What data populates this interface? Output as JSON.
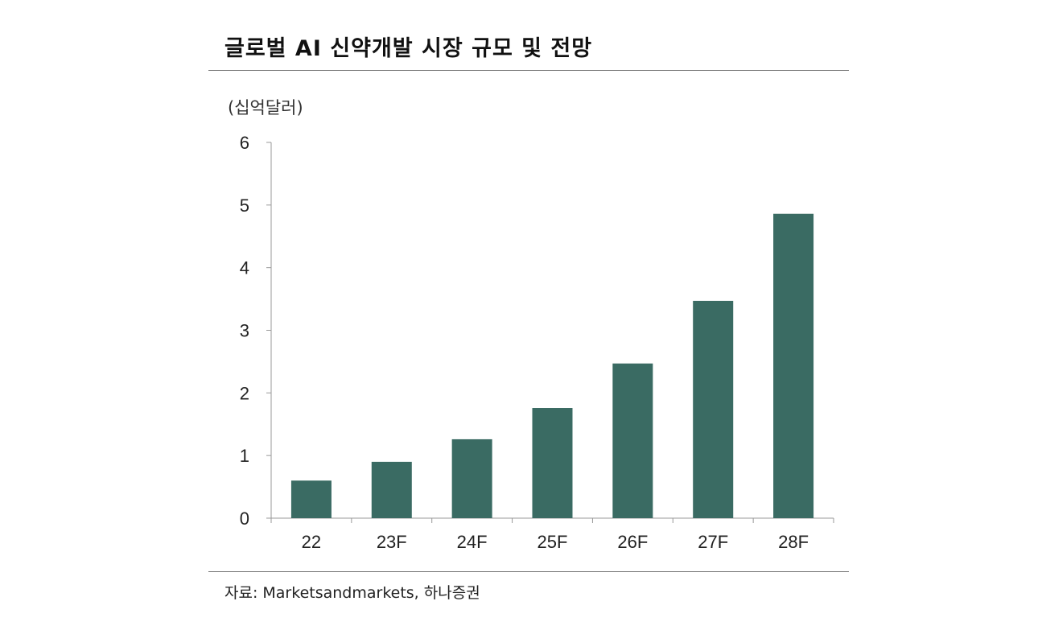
{
  "title": "글로벌 AI 신약개발 시장 규모 및 전망",
  "unit_label": "(십억달러)",
  "source": "자료: Marketsandmarkets, 하나증권",
  "chart_data": {
    "type": "bar",
    "title": "글로벌 AI 신약개발 시장 규모 및 전망",
    "xlabel": "",
    "ylabel": "(십억달러)",
    "categories": [
      "22",
      "23F",
      "24F",
      "25F",
      "26F",
      "27F",
      "28F"
    ],
    "values": [
      0.6,
      0.9,
      1.26,
      1.76,
      2.47,
      3.47,
      4.86
    ],
    "ylim": [
      0,
      6
    ],
    "yticks": [
      "0",
      "1",
      "2",
      "3",
      "4",
      "5",
      "6"
    ],
    "grid": false,
    "bar_color": "#3a6b63"
  }
}
